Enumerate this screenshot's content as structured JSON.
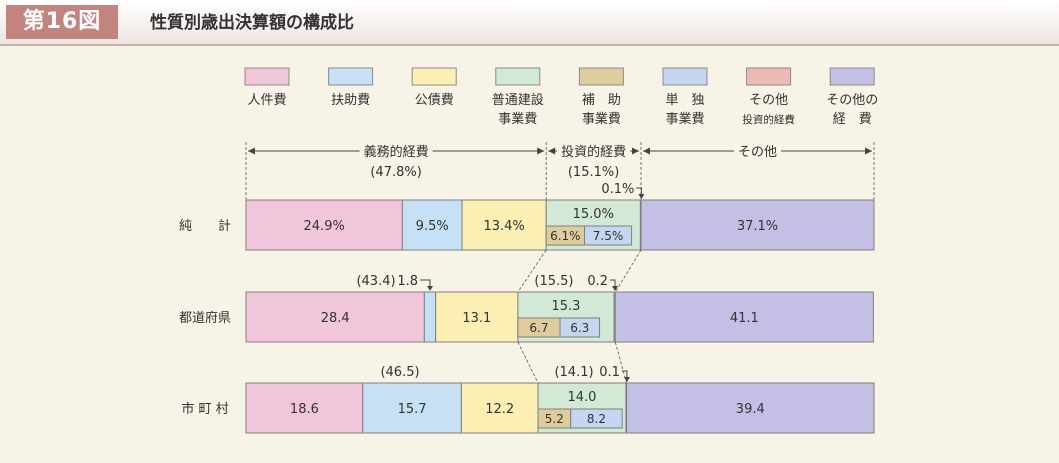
{
  "header": {
    "figure_label": "第16図",
    "title": "性質別歳出決算額の構成比"
  },
  "chart_data": {
    "type": "bar",
    "orientation": "horizontal",
    "stacked": true,
    "xlim": [
      0,
      100
    ],
    "title": "性質別歳出決算額の構成比",
    "legend": [
      {
        "key": "jinken",
        "lines": [
          "人件費"
        ],
        "color": "#f2c6da"
      },
      {
        "key": "fujo",
        "lines": [
          "扶助費"
        ],
        "color": "#c6e0f5"
      },
      {
        "key": "kousai",
        "lines": [
          "公債費"
        ],
        "color": "#fbefb4"
      },
      {
        "key": "futsu",
        "lines": [
          "普通建設",
          "事業費"
        ],
        "color": "#d2e9d6"
      },
      {
        "key": "hojo",
        "lines": [
          "補　助",
          "事業費"
        ],
        "color": "#decc9c"
      },
      {
        "key": "tandoku",
        "lines": [
          "単　独",
          "事業費"
        ],
        "color": "#c4d6f1"
      },
      {
        "key": "sonota_toushi",
        "lines": [
          "その他",
          "投資的経費"
        ],
        "color": "#efb9b3"
      },
      {
        "key": "sonota",
        "lines": [
          "その他の",
          "経　費"
        ],
        "color": "#c3bfe5"
      }
    ],
    "brackets": [
      {
        "label": "義務的経費",
        "sub": "(47.8%)"
      },
      {
        "label": "投資的経費",
        "sub": "(15.1%)"
      },
      {
        "label": "その他",
        "sub": ""
      }
    ],
    "rows": [
      {
        "name": "純　　計",
        "segments": [
          {
            "key": "jinken",
            "value": 24.9,
            "label": "24.9%"
          },
          {
            "key": "fujo",
            "value": 9.5,
            "label": "9.5%"
          },
          {
            "key": "kousai",
            "value": 13.4,
            "label": "13.4%"
          },
          {
            "key": "futsu",
            "value": 15.0,
            "label": "15.0%",
            "sub": [
              {
                "key": "hojo",
                "value": 6.1,
                "label": "6.1%"
              },
              {
                "key": "tandoku",
                "value": 7.5,
                "label": "7.5%"
              }
            ]
          },
          {
            "key": "sonota_toushi",
            "value": 0.1,
            "label": "0.1%"
          },
          {
            "key": "sonota",
            "value": 37.1,
            "label": "37.1%"
          }
        ]
      },
      {
        "name": "都道府県",
        "gimu_total": "(43.4)",
        "toushi_total": "(15.5)",
        "segments": [
          {
            "key": "jinken",
            "value": 28.4,
            "label": "28.4"
          },
          {
            "key": "fujo",
            "value": 1.8,
            "label": "1.8"
          },
          {
            "key": "kousai",
            "value": 13.1,
            "label": "13.1"
          },
          {
            "key": "futsu",
            "value": 15.3,
            "label": "15.3",
            "sub": [
              {
                "key": "hojo",
                "value": 6.7,
                "label": "6.7"
              },
              {
                "key": "tandoku",
                "value": 6.3,
                "label": "6.3"
              }
            ]
          },
          {
            "key": "sonota_toushi",
            "value": 0.2,
            "label": "0.2"
          },
          {
            "key": "sonota",
            "value": 41.1,
            "label": "41.1"
          }
        ]
      },
      {
        "name": "市 町 村",
        "gimu_total": "(46.5)",
        "toushi_total": "(14.1)",
        "segments": [
          {
            "key": "jinken",
            "value": 18.6,
            "label": "18.6"
          },
          {
            "key": "fujo",
            "value": 15.7,
            "label": "15.7"
          },
          {
            "key": "kousai",
            "value": 12.2,
            "label": "12.2"
          },
          {
            "key": "futsu",
            "value": 14.0,
            "label": "14.0",
            "sub": [
              {
                "key": "hojo",
                "value": 5.2,
                "label": "5.2"
              },
              {
                "key": "tandoku",
                "value": 8.2,
                "label": "8.2"
              }
            ]
          },
          {
            "key": "sonota_toushi",
            "value": 0.1,
            "label": "0.1"
          },
          {
            "key": "sonota",
            "value": 39.4,
            "label": "39.4"
          }
        ]
      }
    ]
  }
}
